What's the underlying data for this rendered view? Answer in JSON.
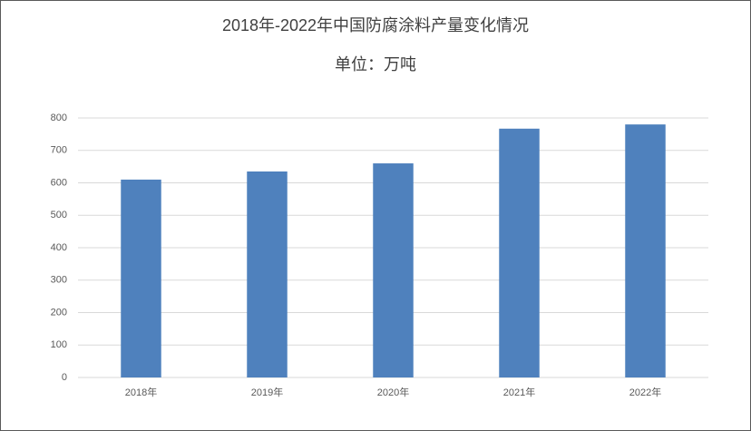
{
  "chart_data": {
    "type": "bar",
    "title": "2018年-2022年中国防腐涂料产量变化情况",
    "subtitle": "单位：万吨",
    "categories": [
      "2018年",
      "2019年",
      "2020年",
      "2021年",
      "2022年"
    ],
    "values": [
      610,
      635,
      660,
      767,
      780
    ],
    "color": "#4f81bd",
    "ylim": [
      0,
      800
    ],
    "yticks": [
      0,
      100,
      200,
      300,
      400,
      500,
      600,
      700,
      800
    ],
    "grid": true
  }
}
